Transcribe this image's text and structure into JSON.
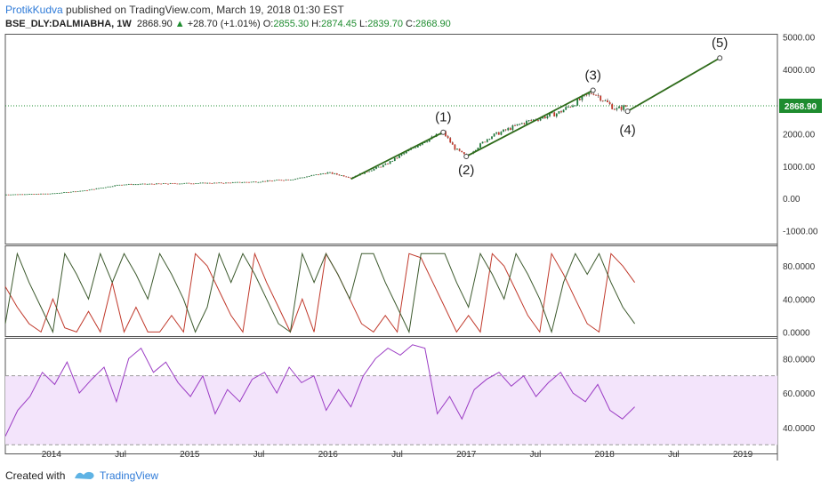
{
  "header": {
    "author": "ProtikKudva",
    "published_text": "published on TradingView.com, March 19, 2018 01:30 EST",
    "symbol": "BSE_DLY:DALMIABHA, 1W",
    "last": "2868.90",
    "change_arrow": "▲",
    "change": "+28.70 (+1.01%)",
    "o_label": "O:",
    "o_value": "2855.30",
    "h_label": "H:",
    "h_value": "2874.45",
    "l_label": "L:",
    "l_value": "2839.70",
    "c_label": "C:",
    "c_value": "2868.90"
  },
  "footer": {
    "created_with": "Created with",
    "brand": "TradingView"
  },
  "chart_data": {
    "type": "candlestick",
    "x_tick_labels": [
      "2014",
      "Jul",
      "2015",
      "Jul",
      "2016",
      "Jul",
      "2017",
      "Jul",
      "2018",
      "Jul",
      "2019"
    ],
    "price_pane": {
      "y_tick_labels": [
        "5000.00",
        "4000.00",
        "3000.00",
        "2000.00",
        "1000.00",
        "0.00",
        "-1000.00"
      ],
      "ylim": [
        -1400,
        5100
      ],
      "last_price_label": "2868.90",
      "close_approx": [
        [
          "2013-09",
          120
        ],
        [
          "2014-01",
          150
        ],
        [
          "2014-04",
          250
        ],
        [
          "2014-07",
          430
        ],
        [
          "2014-10",
          450
        ],
        [
          "2015-01",
          470
        ],
        [
          "2015-04",
          480
        ],
        [
          "2015-07",
          520
        ],
        [
          "2015-10",
          600
        ],
        [
          "2016-01",
          800
        ],
        [
          "2016-03",
          650
        ],
        [
          "2016-06",
          1050
        ],
        [
          "2016-09",
          1700
        ],
        [
          "2016-11",
          2050
        ],
        [
          "2016-12",
          1550
        ],
        [
          "2017-01",
          1300
        ],
        [
          "2017-03",
          1900
        ],
        [
          "2017-06",
          2350
        ],
        [
          "2017-09",
          2650
        ],
        [
          "2017-12",
          3300
        ],
        [
          "2018-02",
          2750
        ],
        [
          "2018-03",
          2868.9
        ]
      ],
      "wave_points": [
        {
          "label": "(1)",
          "date": "2016-11",
          "price": 2050
        },
        {
          "label": "(2)",
          "date": "2017-01",
          "price": 1300
        },
        {
          "label": "(3)",
          "date": "2017-12",
          "price": 3350
        },
        {
          "label": "(4)",
          "date": "2018-03",
          "price": 2700
        },
        {
          "label": "(5)",
          "date": "2018-11",
          "price": 4350
        }
      ],
      "trendline_1": {
        "from": [
          "2016-03",
          600
        ],
        "to": [
          "2016-11",
          2050
        ]
      },
      "trendline_2": {
        "from": [
          "2017-01",
          1300
        ],
        "to": [
          "2017-12",
          3350
        ]
      },
      "projection": {
        "from": [
          "2018-03",
          2700
        ],
        "to": [
          "2018-11",
          4350
        ]
      }
    },
    "oscillator_pane": {
      "y_tick_labels": [
        "80.0000",
        "40.0000",
        "0.0000"
      ],
      "ylim": [
        -5,
        105
      ],
      "series": [
        {
          "color": "#c0392b",
          "values": [
            55,
            30,
            10,
            0,
            40,
            5,
            0,
            25,
            0,
            60,
            0,
            30,
            0,
            0,
            20,
            0,
            95,
            80,
            50,
            20,
            0,
            95,
            60,
            30,
            0,
            40,
            0,
            95,
            70,
            40,
            10,
            0,
            20,
            0,
            95,
            90,
            60,
            30,
            0,
            20,
            0,
            95,
            80,
            50,
            20,
            0,
            95,
            70,
            40,
            10,
            0,
            95,
            80,
            60
          ]
        },
        {
          "color": "#3d5a2e",
          "values": [
            10,
            95,
            60,
            30,
            0,
            95,
            70,
            40,
            95,
            60,
            95,
            70,
            40,
            95,
            70,
            40,
            0,
            30,
            95,
            60,
            95,
            70,
            40,
            10,
            0,
            95,
            60,
            95,
            70,
            40,
            95,
            95,
            60,
            30,
            0,
            95,
            95,
            95,
            60,
            30,
            95,
            70,
            40,
            95,
            70,
            40,
            0,
            60,
            95,
            70,
            95,
            60,
            30,
            10
          ]
        }
      ]
    },
    "rsi_pane": {
      "y_tick_labels": [
        "80.0000",
        "60.0000",
        "40.0000"
      ],
      "ylim": [
        25,
        92
      ],
      "band": [
        30,
        70
      ],
      "color": "#9b3cc4",
      "values": [
        35,
        50,
        58,
        72,
        65,
        78,
        60,
        68,
        75,
        55,
        80,
        86,
        72,
        78,
        66,
        58,
        70,
        48,
        62,
        55,
        68,
        72,
        60,
        75,
        66,
        70,
        50,
        62,
        52,
        70,
        80,
        86,
        82,
        88,
        86,
        48,
        58,
        45,
        62,
        68,
        72,
        64,
        70,
        58,
        66,
        72,
        60,
        55,
        65,
        50,
        45,
        52
      ]
    }
  }
}
